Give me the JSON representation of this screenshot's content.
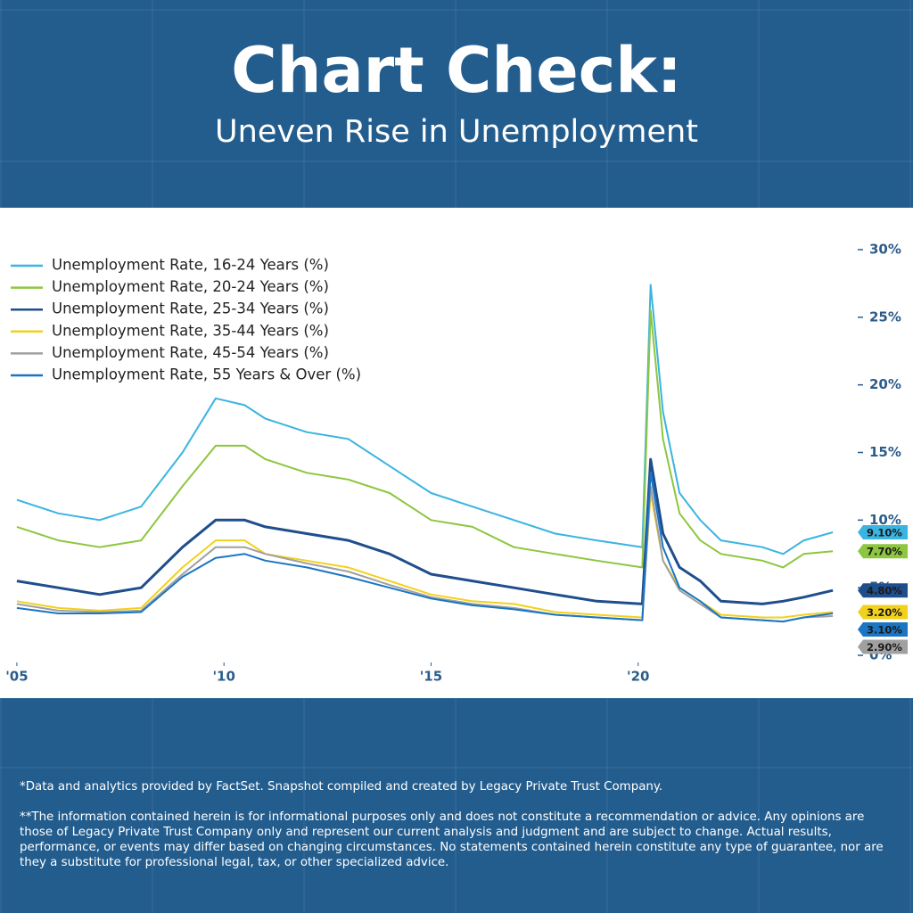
{
  "header": {
    "title": "Chart Check:",
    "subtitle": "Uneven Rise in Unemployment"
  },
  "chart_data": {
    "type": "line",
    "x": [
      2005,
      2006,
      2007,
      2008,
      2009,
      2009.8,
      2010.5,
      2011,
      2012,
      2013,
      2014,
      2015,
      2016,
      2017,
      2018,
      2019,
      2020.1,
      2020.3,
      2020.6,
      2021,
      2021.5,
      2022,
      2023,
      2023.5,
      2024,
      2024.7
    ],
    "xlim": [
      2004.7,
      2025
    ],
    "xticks": [
      {
        "value": 2005,
        "label": "'05"
      },
      {
        "value": 2010,
        "label": "'10"
      },
      {
        "value": 2015,
        "label": "'15"
      },
      {
        "value": 2020,
        "label": "'20"
      }
    ],
    "ylim": [
      0,
      30
    ],
    "yticks": [
      {
        "value": 0,
        "label": "0%"
      },
      {
        "value": 5,
        "label": "5%"
      },
      {
        "value": 10,
        "label": "10%"
      },
      {
        "value": 15,
        "label": "15%"
      },
      {
        "value": 20,
        "label": "20%"
      },
      {
        "value": 25,
        "label": "25%"
      },
      {
        "value": 30,
        "label": "30%"
      }
    ],
    "legend": "upper left",
    "series": [
      {
        "name": "Unemployment Rate, 16-24 Years (%)",
        "color": "#3ab4e0",
        "end_label": "9.10%",
        "values": [
          11.5,
          10.5,
          10,
          11,
          15,
          19,
          18.5,
          17.5,
          16.5,
          16,
          14,
          12,
          11,
          10,
          9,
          8.5,
          8,
          27.4,
          18,
          12,
          10,
          8.5,
          8,
          7.5,
          8.5,
          9.1
        ]
      },
      {
        "name": "Unemployment Rate, 20-24 Years (%)",
        "color": "#8dc63f",
        "end_label": "7.70%",
        "values": [
          9.5,
          8.5,
          8,
          8.5,
          12.5,
          15.5,
          15.5,
          14.5,
          13.5,
          13,
          12,
          10,
          9.5,
          8,
          7.5,
          7,
          6.5,
          25.5,
          16,
          10.5,
          8.5,
          7.5,
          7,
          6.5,
          7.5,
          7.7
        ]
      },
      {
        "name": "Unemployment Rate, 25-34 Years (%)",
        "color": "#1f4e8c",
        "end_label": "4.80%",
        "values": [
          5.5,
          5,
          4.5,
          5,
          8,
          10,
          10,
          9.5,
          9,
          8.5,
          7.5,
          6,
          5.5,
          5,
          4.5,
          4,
          3.8,
          14.5,
          9,
          6.5,
          5.5,
          4,
          3.8,
          4,
          4.3,
          4.8
        ]
      },
      {
        "name": "Unemployment Rate, 35-44 Years (%)",
        "color": "#f2d11c",
        "end_label": "3.20%",
        "values": [
          4,
          3.5,
          3.3,
          3.5,
          6.5,
          8.5,
          8.5,
          7.5,
          7,
          6.5,
          5.5,
          4.5,
          4,
          3.8,
          3.2,
          3,
          2.8,
          12,
          7,
          5,
          4,
          3,
          2.8,
          2.8,
          3,
          3.2
        ]
      },
      {
        "name": "Unemployment Rate, 45-54 Years (%)",
        "color": "#a0a0a0",
        "end_label": "2.90%",
        "values": [
          3.8,
          3.3,
          3.2,
          3.3,
          6,
          8,
          8,
          7.5,
          6.8,
          6.2,
          5.2,
          4.3,
          3.8,
          3.5,
          3,
          2.8,
          2.6,
          12.5,
          7,
          4.8,
          3.8,
          2.8,
          2.6,
          2.5,
          2.8,
          2.9
        ]
      },
      {
        "name": "Unemployment Rate, 55 Years & Over (%)",
        "color": "#1a75c4",
        "end_label": "3.10%",
        "values": [
          3.5,
          3.1,
          3.1,
          3.2,
          5.8,
          7.2,
          7.5,
          7,
          6.5,
          5.8,
          5,
          4.2,
          3.7,
          3.4,
          3,
          2.8,
          2.6,
          13.5,
          8,
          5,
          4,
          2.8,
          2.6,
          2.5,
          2.8,
          3.1
        ]
      }
    ]
  },
  "footer": {
    "source": "*Data and analytics provided by FactSet. Snapshot compiled and created by Legacy Private Trust Company.",
    "disclaimer": "**The information contained herein is for informational purposes only and does not constitute a recommendation or advice. Any opinions are those of Legacy Private Trust Company only and represent our current analysis and judgment and are subject to change. Actual results, performance, or events may differ based on changing circumstances. No statements contained herein constitute any type of guarantee, nor are they a substitute for professional legal, tax, or other specialized advice."
  }
}
